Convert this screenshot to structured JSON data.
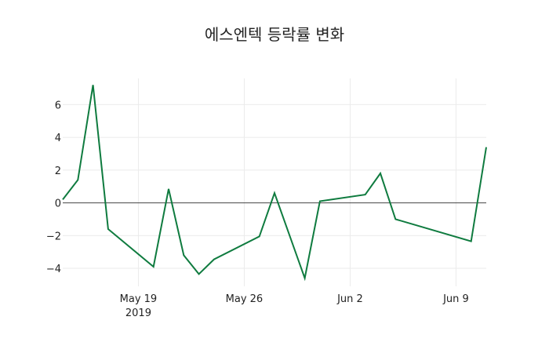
{
  "chart_data": {
    "type": "line",
    "title": "에스엔텍 등락률 변화",
    "xlabel": "",
    "ylabel": "",
    "x": [
      "2019-05-14",
      "2019-05-15",
      "2019-05-16",
      "2019-05-17",
      "2019-05-20",
      "2019-05-21",
      "2019-05-22",
      "2019-05-23",
      "2019-05-24",
      "2019-05-27",
      "2019-05-28",
      "2019-05-30",
      "2019-05-31",
      "2019-06-03",
      "2019-06-04",
      "2019-06-05",
      "2019-06-10",
      "2019-06-11"
    ],
    "series": [
      {
        "name": "등락률",
        "color": "#0f7b3f",
        "values": [
          0.2,
          1.4,
          7.2,
          -1.6,
          -3.9,
          0.85,
          -3.2,
          -4.35,
          -3.45,
          -2.05,
          0.6,
          -4.6,
          0.1,
          0.5,
          1.8,
          -1.0,
          -2.35,
          3.4
        ]
      }
    ],
    "x_ticks": [
      {
        "date": "2019-05-19",
        "label": "May 19",
        "sublabel": "2019"
      },
      {
        "date": "2019-05-26",
        "label": "May 26",
        "sublabel": ""
      },
      {
        "date": "2019-06-02",
        "label": "Jun 2",
        "sublabel": ""
      },
      {
        "date": "2019-06-09",
        "label": "Jun 9",
        "sublabel": ""
      }
    ],
    "y_ticks": [
      6,
      4,
      2,
      0,
      -2,
      -4
    ],
    "y_tick_labels": [
      "6",
      "4",
      "2",
      "0",
      "−2",
      "−4"
    ],
    "xlim": [
      "2019-05-14",
      "2019-06-11"
    ],
    "ylim": [
      -5.1,
      7.6
    ],
    "grid": true,
    "zero_line": true,
    "legend": false
  }
}
